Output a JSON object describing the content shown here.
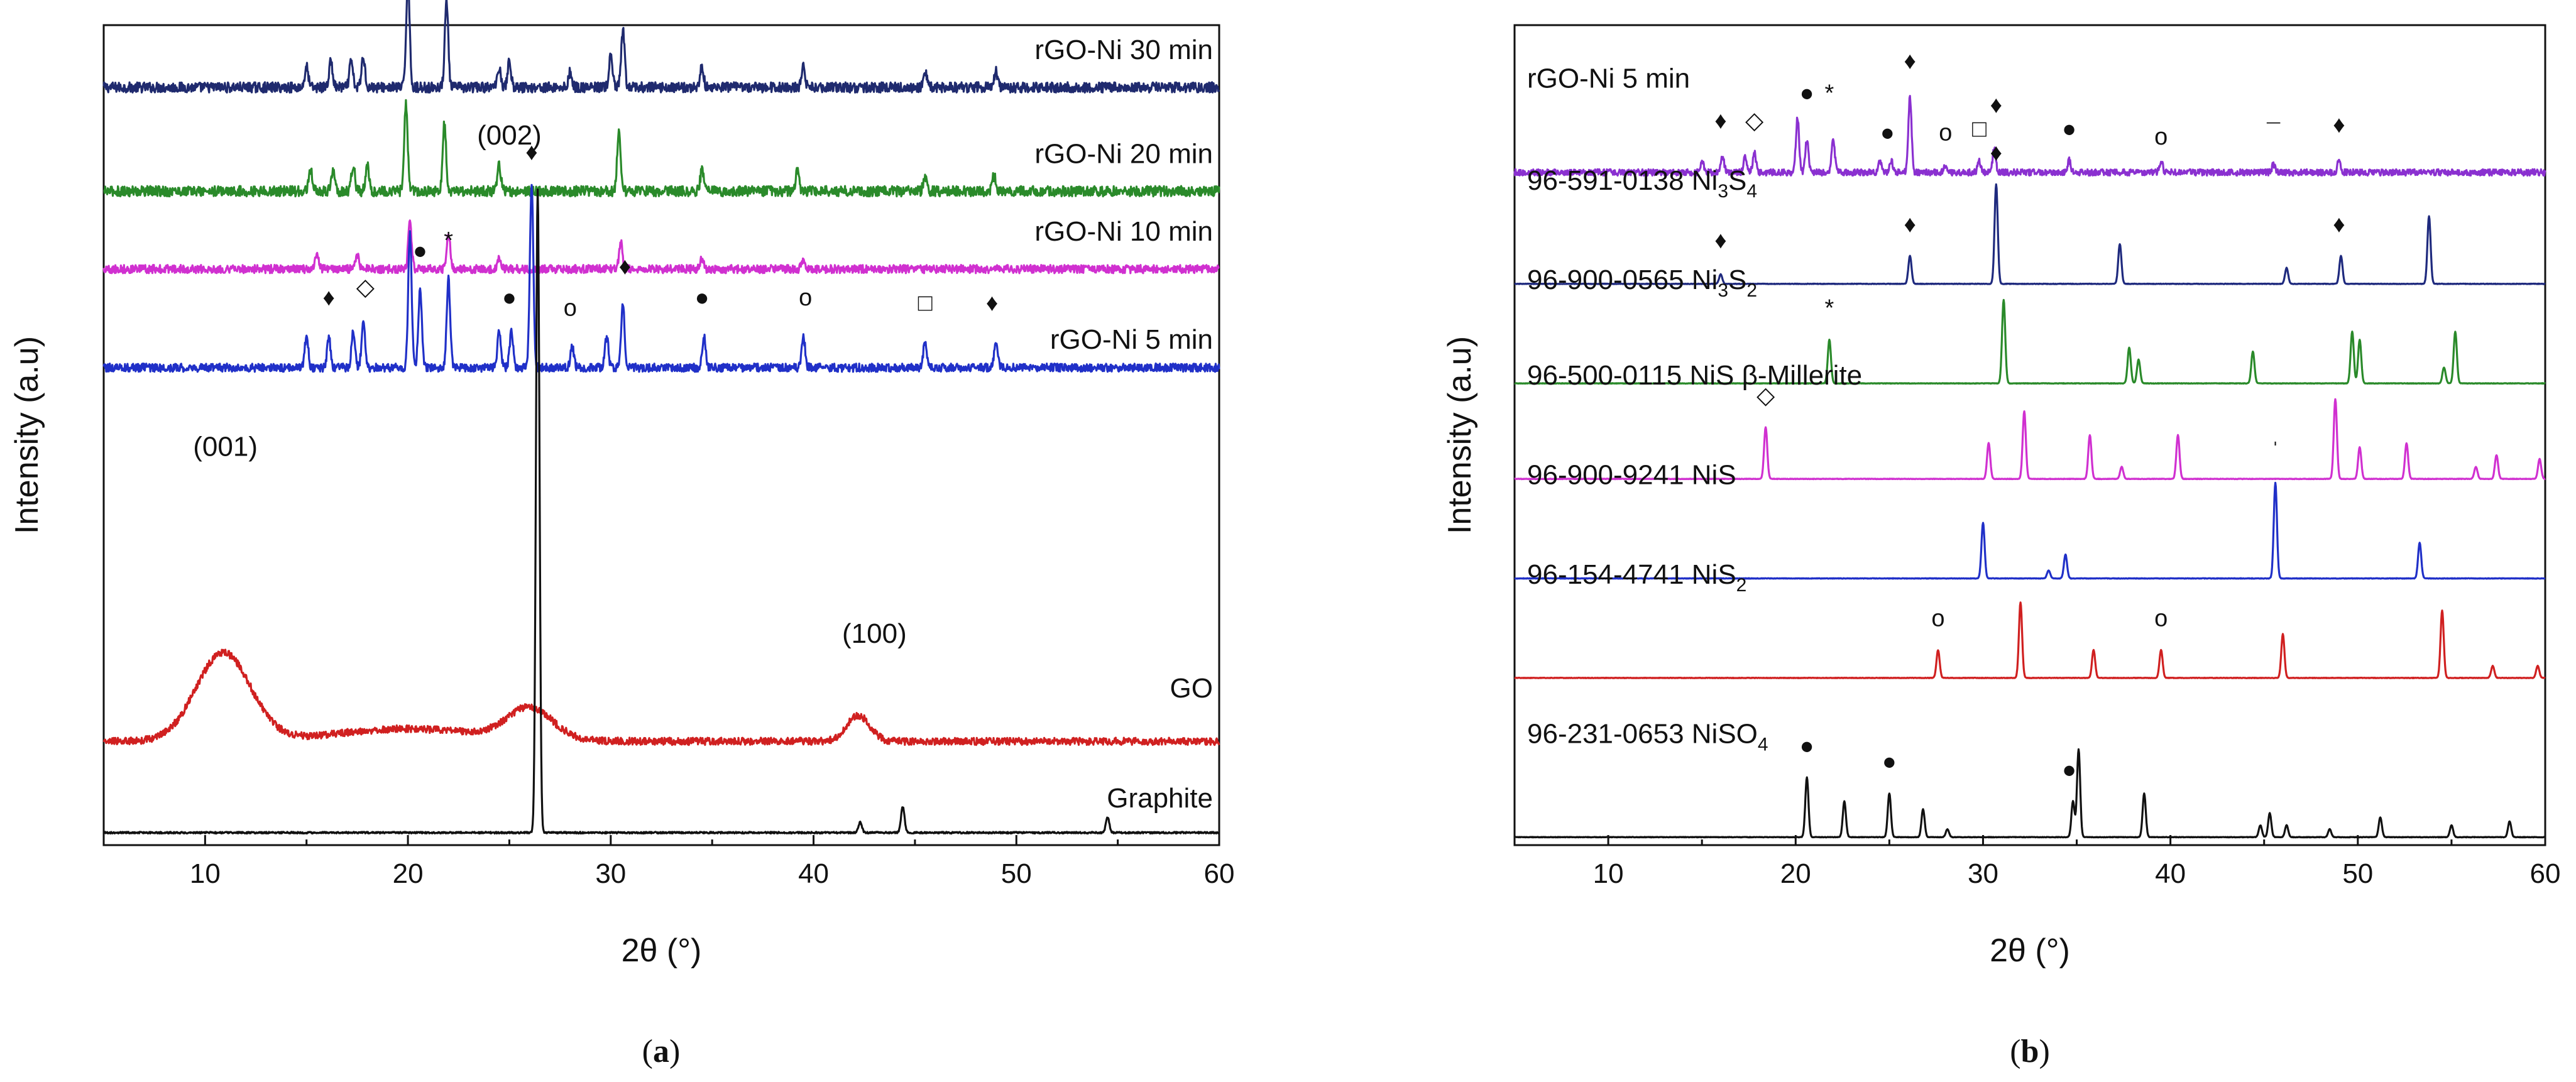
{
  "chart_data": [
    {
      "type": "line",
      "panel_label": "a",
      "xlabel": "2θ (°)",
      "ylabel": "Intensity (a.u)",
      "xlim": [
        5,
        60
      ],
      "x_ticks": [
        10,
        20,
        30,
        40,
        50,
        60
      ],
      "y_ticks_shown": false,
      "series": [
        {
          "name": "rGO-Ni 30 min",
          "color": "#1f2a6e",
          "baseline": 7.3,
          "noise": 0.05,
          "peaks": [
            [
              15.0,
              0.2
            ],
            [
              16.2,
              0.25
            ],
            [
              17.2,
              0.25
            ],
            [
              17.8,
              0.3
            ],
            [
              20.0,
              1.05
            ],
            [
              21.9,
              0.85
            ],
            [
              24.5,
              0.2
            ],
            [
              25.0,
              0.25
            ],
            [
              28.0,
              0.15
            ],
            [
              30.0,
              0.3
            ],
            [
              30.6,
              0.55
            ],
            [
              34.5,
              0.2
            ],
            [
              39.5,
              0.2
            ],
            [
              45.5,
              0.15
            ],
            [
              49.0,
              0.15
            ]
          ]
        },
        {
          "name": "rGO-Ni 20 min",
          "color": "#2a8a2a",
          "baseline": 6.3,
          "noise": 0.05,
          "peaks": [
            [
              15.2,
              0.2
            ],
            [
              16.3,
              0.2
            ],
            [
              17.3,
              0.25
            ],
            [
              18.0,
              0.25
            ],
            [
              19.9,
              0.85
            ],
            [
              21.8,
              0.65
            ],
            [
              24.5,
              0.25
            ],
            [
              30.4,
              0.55
            ],
            [
              34.5,
              0.2
            ],
            [
              39.2,
              0.2
            ],
            [
              45.5,
              0.15
            ],
            [
              48.9,
              0.15
            ]
          ]
        },
        {
          "name": "rGO-Ni 10 min",
          "color": "#d030d0",
          "baseline": 5.55,
          "noise": 0.04,
          "peaks": [
            [
              15.5,
              0.15
            ],
            [
              17.5,
              0.15
            ],
            [
              20.1,
              0.45
            ],
            [
              22.0,
              0.35
            ],
            [
              24.5,
              0.1
            ],
            [
              30.5,
              0.25
            ],
            [
              34.5,
              0.1
            ],
            [
              39.5,
              0.1
            ]
          ]
        },
        {
          "name": "rGO-Ni 5 min",
          "color": "#2030c8",
          "baseline": 4.6,
          "noise": 0.04,
          "peaks": [
            [
              15.0,
              0.3
            ],
            [
              16.1,
              0.3
            ],
            [
              17.3,
              0.35
            ],
            [
              17.8,
              0.45
            ],
            [
              20.1,
              1.3
            ],
            [
              20.6,
              0.75
            ],
            [
              22.0,
              0.85
            ],
            [
              24.5,
              0.35
            ],
            [
              25.1,
              0.35
            ],
            [
              26.1,
              1.75
            ],
            [
              28.1,
              0.2
            ],
            [
              29.8,
              0.3
            ],
            [
              30.6,
              0.6
            ],
            [
              34.6,
              0.3
            ],
            [
              39.5,
              0.3
            ],
            [
              45.5,
              0.25
            ],
            [
              49.0,
              0.25
            ]
          ]
        },
        {
          "name": "GO",
          "color": "#d02020",
          "baseline": 1.0,
          "noise": 0.035,
          "broad": [
            [
              10.9,
              0.85,
              1.9
            ],
            [
              26.0,
              0.3,
              1.6
            ],
            [
              42.2,
              0.25,
              0.8
            ],
            [
              20.0,
              0.12,
              5.0
            ]
          ]
        },
        {
          "name": "Graphite",
          "color": "#111111",
          "baseline": 0.12,
          "noise": 0.008,
          "peaks": [
            [
              26.4,
              6.2
            ],
            [
              42.3,
              0.1
            ],
            [
              44.4,
              0.25
            ],
            [
              54.5,
              0.15
            ]
          ]
        }
      ],
      "annotations": [
        {
          "text": "(001)",
          "x": 11.0,
          "y": 3.75
        },
        {
          "text": "(100)",
          "x": 43.0,
          "y": 1.95
        },
        {
          "text": "(002)",
          "x": 25.0,
          "y": 6.75
        }
      ],
      "markers": [
        {
          "symbol": "♦",
          "x": 16.1,
          "y": 5.2
        },
        {
          "symbol": "◇",
          "x": 17.9,
          "y": 5.3
        },
        {
          "symbol": "●",
          "x": 20.6,
          "y": 5.65
        },
        {
          "symbol": "*",
          "x": 22.0,
          "y": 5.75
        },
        {
          "symbol": "●",
          "x": 25.0,
          "y": 5.2
        },
        {
          "symbol": "♦",
          "x": 26.1,
          "y": 6.6
        },
        {
          "symbol": "o",
          "x": 28.0,
          "y": 5.1
        },
        {
          "symbol": "♦",
          "x": 30.7,
          "y": 5.5
        },
        {
          "symbol": "●",
          "x": 34.5,
          "y": 5.2
        },
        {
          "symbol": "o",
          "x": 39.6,
          "y": 5.2
        },
        {
          "symbol": "□",
          "x": 45.5,
          "y": 5.15
        },
        {
          "symbol": "♦",
          "x": 48.8,
          "y": 5.15
        }
      ]
    },
    {
      "type": "line",
      "panel_label": "b",
      "xlabel": "2θ (°)",
      "ylabel": "Intensity (a.u)",
      "xlim": [
        5,
        60
      ],
      "x_ticks": [
        10,
        20,
        30,
        40,
        50,
        60
      ],
      "y_ticks_shown": false,
      "series": [
        {
          "name": "rGO-Ni 5 min",
          "color": "#8a30d0",
          "baseline": 8.45,
          "noise": 0.04,
          "peaks": [
            [
              15.0,
              0.15
            ],
            [
              16.1,
              0.2
            ],
            [
              17.3,
              0.2
            ],
            [
              17.8,
              0.25
            ],
            [
              20.1,
              0.7
            ],
            [
              20.6,
              0.4
            ],
            [
              22.0,
              0.45
            ],
            [
              24.5,
              0.15
            ],
            [
              25.1,
              0.15
            ],
            [
              26.1,
              0.95
            ],
            [
              28.0,
              0.1
            ],
            [
              29.8,
              0.15
            ],
            [
              30.6,
              0.3
            ],
            [
              34.6,
              0.15
            ],
            [
              39.5,
              0.15
            ],
            [
              45.5,
              0.1
            ],
            [
              49.0,
              0.15
            ]
          ]
        },
        {
          "name": "96-591-0138 Ni3S4",
          "label_main": "96-591-0138 Ni",
          "label_sub1": "3",
          "label_mid": "S",
          "label_sub2": "4",
          "color": "#1f2a7e",
          "baseline": 7.05,
          "noise": 0.003,
          "peaks": [
            [
              16.0,
              0.12
            ],
            [
              26.1,
              0.35
            ],
            [
              30.7,
              1.25
            ],
            [
              37.3,
              0.5
            ],
            [
              46.2,
              0.2
            ],
            [
              49.1,
              0.35
            ],
            [
              53.8,
              0.85
            ]
          ]
        },
        {
          "name": "96-900-0565 Ni3S2",
          "label_main": "96-900-0565 Ni",
          "label_sub1": "3",
          "label_mid": "S",
          "label_sub2": "2",
          "color": "#2a8a2a",
          "baseline": 5.8,
          "noise": 0.003,
          "peaks": [
            [
              21.8,
              0.55
            ],
            [
              31.1,
              1.05
            ],
            [
              37.8,
              0.45
            ],
            [
              38.3,
              0.3
            ],
            [
              44.4,
              0.4
            ],
            [
              49.7,
              0.65
            ],
            [
              50.1,
              0.55
            ],
            [
              54.6,
              0.2
            ],
            [
              55.2,
              0.65
            ]
          ]
        },
        {
          "name": "96-500-0115 NiS β-Millerite",
          "color": "#d030d0",
          "baseline": 4.6,
          "noise": 0.003,
          "peaks": [
            [
              18.4,
              0.65
            ],
            [
              30.3,
              0.45
            ],
            [
              32.2,
              0.85
            ],
            [
              35.7,
              0.55
            ],
            [
              37.4,
              0.15
            ],
            [
              40.4,
              0.55
            ],
            [
              48.8,
              1.0
            ],
            [
              50.1,
              0.4
            ],
            [
              52.6,
              0.45
            ],
            [
              56.3,
              0.15
            ],
            [
              57.4,
              0.3
            ],
            [
              59.7,
              0.25
            ]
          ]
        },
        {
          "name": "96-900-9241 NiS",
          "color": "#2030c8",
          "baseline": 3.35,
          "noise": 0.003,
          "peaks": [
            [
              30.0,
              0.7
            ],
            [
              33.5,
              0.1
            ],
            [
              34.4,
              0.3
            ],
            [
              45.6,
              1.2
            ],
            [
              53.3,
              0.45
            ]
          ]
        },
        {
          "name": "96-154-4741 NiS2",
          "label_main": "96-154-4741 NiS",
          "label_sub1": "2",
          "label_mid": "",
          "label_sub2": "",
          "color": "#d02020",
          "baseline": 2.1,
          "noise": 0.003,
          "peaks": [
            [
              27.6,
              0.35
            ],
            [
              32.0,
              0.95
            ],
            [
              35.9,
              0.35
            ],
            [
              39.5,
              0.35
            ],
            [
              46.0,
              0.55
            ],
            [
              54.5,
              0.85
            ],
            [
              57.2,
              0.15
            ],
            [
              59.6,
              0.15
            ]
          ]
        },
        {
          "name": "96-231-0653 NiSO4",
          "label_main": "96-231-0653 NiSO",
          "label_sub1": "4",
          "label_mid": "",
          "label_sub2": "",
          "color": "#111111",
          "baseline": 0.1,
          "noise": 0.003,
          "peaks": [
            [
              20.6,
              0.75
            ],
            [
              22.6,
              0.45
            ],
            [
              25.0,
              0.55
            ],
            [
              26.8,
              0.35
            ],
            [
              28.1,
              0.1
            ],
            [
              34.8,
              0.45
            ],
            [
              35.1,
              1.1
            ],
            [
              38.6,
              0.55
            ],
            [
              44.8,
              0.15
            ],
            [
              45.3,
              0.3
            ],
            [
              46.2,
              0.15
            ],
            [
              48.5,
              0.1
            ],
            [
              51.2,
              0.25
            ],
            [
              55.0,
              0.15
            ],
            [
              58.1,
              0.2
            ]
          ]
        }
      ],
      "markers": [
        {
          "symbol": "♦",
          "x": 16.0,
          "y": 9.0
        },
        {
          "symbol": "◇",
          "x": 17.8,
          "y": 9.0
        },
        {
          "symbol": "●",
          "x": 20.6,
          "y": 9.35
        },
        {
          "symbol": "*",
          "x": 21.8,
          "y": 9.35
        },
        {
          "symbol": "●",
          "x": 24.9,
          "y": 8.85
        },
        {
          "symbol": "♦",
          "x": 26.1,
          "y": 9.75
        },
        {
          "symbol": "o",
          "x": 28.0,
          "y": 8.85
        },
        {
          "symbol": "□",
          "x": 29.8,
          "y": 8.9
        },
        {
          "symbol": "♦",
          "x": 30.7,
          "y": 9.2
        },
        {
          "symbol": "●",
          "x": 34.6,
          "y": 8.9
        },
        {
          "symbol": "o",
          "x": 39.5,
          "y": 8.8
        },
        {
          "symbol": "¯",
          "x": 45.5,
          "y": 8.85
        },
        {
          "symbol": "♦",
          "x": 49.0,
          "y": 8.95
        },
        {
          "symbol": "♦",
          "x": 30.7,
          "y": 8.6
        },
        {
          "symbol": "♦",
          "x": 16.0,
          "y": 7.5
        },
        {
          "symbol": "♦",
          "x": 26.1,
          "y": 7.7
        },
        {
          "symbol": "♦",
          "x": 49.0,
          "y": 7.7
        },
        {
          "symbol": "*",
          "x": 21.8,
          "y": 6.65
        },
        {
          "symbol": "◇",
          "x": 18.4,
          "y": 5.55
        },
        {
          "symbol": "ˈ",
          "x": 45.6,
          "y": 4.85
        },
        {
          "symbol": "o",
          "x": 27.6,
          "y": 2.75
        },
        {
          "symbol": "o",
          "x": 39.5,
          "y": 2.75
        },
        {
          "symbol": "●",
          "x": 20.6,
          "y": 1.15
        },
        {
          "symbol": "●",
          "x": 25.0,
          "y": 0.95
        },
        {
          "symbol": "●",
          "x": 34.6,
          "y": 0.85
        }
      ]
    }
  ]
}
